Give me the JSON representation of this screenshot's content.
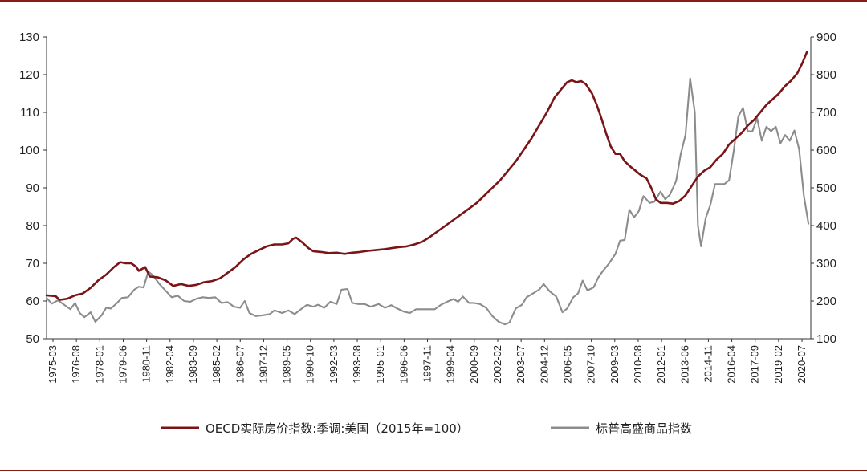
{
  "chart_data": {
    "type": "line",
    "title": "",
    "xlabel": "",
    "ylabel": "",
    "grid": false,
    "legend_position": "bottom",
    "colors": {
      "frame": "#8b1a1a",
      "axis": "#333333"
    },
    "x_tick_labels": [
      "1975-03",
      "1976-08",
      "1978-01",
      "1979-06",
      "1980-11",
      "1982-04",
      "1983-09",
      "1985-02",
      "1986-07",
      "1987-12",
      "1989-05",
      "1990-10",
      "1992-03",
      "1993-08",
      "1995-01",
      "1996-06",
      "1997-11",
      "1999-04",
      "2000-09",
      "2002-02",
      "2003-07",
      "2004-12",
      "2006-05",
      "2007-10",
      "2009-03",
      "2010-08",
      "2012-01",
      "2013-06",
      "2014-11",
      "2016-04",
      "2017-09",
      "2019-02",
      "2020-07"
    ],
    "y_left": {
      "ylim": [
        50,
        130
      ],
      "ticks": [
        50,
        60,
        70,
        80,
        90,
        100,
        110,
        120,
        130
      ]
    },
    "y_right": {
      "ylim": [
        100,
        900
      ],
      "ticks": [
        100,
        200,
        300,
        400,
        500,
        600,
        700,
        800,
        900
      ]
    },
    "series": [
      {
        "name": "OECD实际房价指数:季调:美国（2015年=100）",
        "axis": "left",
        "color": "#7b1417",
        "points": [
          [
            1975.17,
            61.5
          ],
          [
            1975.75,
            61.3
          ],
          [
            1976.0,
            60.3
          ],
          [
            1976.5,
            60.6
          ],
          [
            1977.0,
            61.5
          ],
          [
            1977.5,
            62.0
          ],
          [
            1978.0,
            63.5
          ],
          [
            1978.5,
            65.5
          ],
          [
            1979.0,
            67.0
          ],
          [
            1979.5,
            69.0
          ],
          [
            1979.9,
            70.3
          ],
          [
            1980.25,
            70.0
          ],
          [
            1980.6,
            70.0
          ],
          [
            1980.9,
            69.2
          ],
          [
            1981.1,
            68.0
          ],
          [
            1981.5,
            69.0
          ],
          [
            1981.8,
            66.5
          ],
          [
            1982.3,
            66.3
          ],
          [
            1982.8,
            65.5
          ],
          [
            1983.3,
            64.0
          ],
          [
            1983.8,
            64.5
          ],
          [
            1984.3,
            64.0
          ],
          [
            1984.8,
            64.3
          ],
          [
            1985.3,
            65.0
          ],
          [
            1985.8,
            65.3
          ],
          [
            1986.3,
            66.0
          ],
          [
            1986.8,
            67.5
          ],
          [
            1987.3,
            69.0
          ],
          [
            1987.8,
            71.0
          ],
          [
            1988.3,
            72.5
          ],
          [
            1988.8,
            73.5
          ],
          [
            1989.3,
            74.5
          ],
          [
            1989.8,
            75.0
          ],
          [
            1990.3,
            75.0
          ],
          [
            1990.7,
            75.3
          ],
          [
            1991.0,
            76.5
          ],
          [
            1991.2,
            76.8
          ],
          [
            1991.6,
            75.5
          ],
          [
            1992.0,
            74.0
          ],
          [
            1992.3,
            73.2
          ],
          [
            1992.8,
            73.0
          ],
          [
            1993.3,
            72.7
          ],
          [
            1993.8,
            72.8
          ],
          [
            1994.3,
            72.5
          ],
          [
            1994.8,
            72.8
          ],
          [
            1995.3,
            73.0
          ],
          [
            1995.8,
            73.3
          ],
          [
            1996.3,
            73.5
          ],
          [
            1996.8,
            73.7
          ],
          [
            1997.3,
            74.0
          ],
          [
            1997.8,
            74.3
          ],
          [
            1998.3,
            74.5
          ],
          [
            1998.8,
            75.0
          ],
          [
            1999.3,
            75.7
          ],
          [
            1999.8,
            77.0
          ],
          [
            2000.3,
            78.5
          ],
          [
            2000.8,
            80.0
          ],
          [
            2001.3,
            81.5
          ],
          [
            2001.8,
            83.0
          ],
          [
            2002.3,
            84.5
          ],
          [
            2002.8,
            86.0
          ],
          [
            2003.3,
            88.0
          ],
          [
            2003.8,
            90.0
          ],
          [
            2004.3,
            92.0
          ],
          [
            2004.8,
            94.5
          ],
          [
            2005.3,
            97.0
          ],
          [
            2005.8,
            100.0
          ],
          [
            2006.3,
            103.0
          ],
          [
            2006.8,
            106.5
          ],
          [
            2007.3,
            110.0
          ],
          [
            2007.8,
            114.0
          ],
          [
            2008.3,
            116.5
          ],
          [
            2008.6,
            118.0
          ],
          [
            2008.9,
            118.5
          ],
          [
            2009.2,
            118.0
          ],
          [
            2009.5,
            118.3
          ],
          [
            2009.8,
            117.5
          ],
          [
            2010.2,
            115.0
          ],
          [
            2010.5,
            112.0
          ],
          [
            2010.8,
            108.5
          ],
          [
            2011.1,
            104.5
          ],
          [
            2011.4,
            101.0
          ],
          [
            2011.7,
            99.0
          ],
          [
            2012.0,
            99.0
          ],
          [
            2012.3,
            97.0
          ],
          [
            2012.7,
            95.5
          ],
          [
            2013.0,
            94.5
          ],
          [
            2013.3,
            93.5
          ],
          [
            2013.7,
            92.5
          ],
          [
            2014.0,
            90.0
          ],
          [
            2014.3,
            87.0
          ],
          [
            2014.6,
            86.0
          ],
          [
            2015.0,
            86.0
          ],
          [
            2015.4,
            85.8
          ],
          [
            2015.8,
            86.5
          ],
          [
            2016.2,
            88.0
          ],
          [
            2016.6,
            90.5
          ],
          [
            2017.0,
            93.0
          ],
          [
            2017.4,
            94.5
          ],
          [
            2017.8,
            95.5
          ],
          [
            2018.2,
            97.5
          ],
          [
            2018.6,
            99.0
          ],
          [
            2019.0,
            101.5
          ],
          [
            2019.4,
            103.0
          ],
          [
            2019.8,
            104.5
          ],
          [
            2020.2,
            106.5
          ],
          [
            2020.6,
            108.0
          ],
          [
            2021.0,
            110.0
          ],
          [
            2021.4,
            112.0
          ],
          [
            2021.8,
            113.5
          ],
          [
            2022.2,
            115.0
          ],
          [
            2022.6,
            117.0
          ],
          [
            2023.0,
            118.5
          ],
          [
            2023.4,
            120.5
          ],
          [
            2023.7,
            123.0
          ],
          [
            2024.0,
            126.0
          ]
        ]
      },
      {
        "name": "标普高盛商品指数",
        "axis": "right",
        "color": "#8c8c8c",
        "points": [
          [
            1975.17,
            208
          ],
          [
            1975.5,
            193
          ],
          [
            1975.9,
            202
          ],
          [
            1976.3,
            190
          ],
          [
            1976.7,
            178
          ],
          [
            1977.0,
            195
          ],
          [
            1977.3,
            168
          ],
          [
            1977.6,
            157
          ],
          [
            1978.0,
            170
          ],
          [
            1978.3,
            145
          ],
          [
            1978.7,
            162
          ],
          [
            1979.0,
            182
          ],
          [
            1979.3,
            180
          ],
          [
            1979.7,
            195
          ],
          [
            1980.0,
            208
          ],
          [
            1980.4,
            210
          ],
          [
            1980.8,
            230
          ],
          [
            1981.1,
            238
          ],
          [
            1981.4,
            236
          ],
          [
            1981.7,
            278
          ],
          [
            1982.0,
            268
          ],
          [
            1982.4,
            246
          ],
          [
            1982.8,
            228
          ],
          [
            1983.2,
            210
          ],
          [
            1983.6,
            214
          ],
          [
            1984.0,
            200
          ],
          [
            1984.4,
            198
          ],
          [
            1984.8,
            206
          ],
          [
            1985.2,
            210
          ],
          [
            1985.6,
            208
          ],
          [
            1986.0,
            210
          ],
          [
            1986.4,
            195
          ],
          [
            1986.8,
            197
          ],
          [
            1987.2,
            185
          ],
          [
            1987.6,
            182
          ],
          [
            1987.9,
            200
          ],
          [
            1988.2,
            168
          ],
          [
            1988.6,
            160
          ],
          [
            1989.0,
            162
          ],
          [
            1989.5,
            165
          ],
          [
            1989.8,
            175
          ],
          [
            1990.3,
            168
          ],
          [
            1990.7,
            175
          ],
          [
            1991.1,
            165
          ],
          [
            1991.5,
            178
          ],
          [
            1991.9,
            190
          ],
          [
            1992.3,
            185
          ],
          [
            1992.6,
            190
          ],
          [
            1993.0,
            182
          ],
          [
            1993.4,
            198
          ],
          [
            1993.8,
            192
          ],
          [
            1994.1,
            230
          ],
          [
            1994.5,
            232
          ],
          [
            1994.8,
            195
          ],
          [
            1995.2,
            192
          ],
          [
            1995.6,
            192
          ],
          [
            1996.0,
            185
          ],
          [
            1996.5,
            192
          ],
          [
            1996.9,
            182
          ],
          [
            1997.3,
            189
          ],
          [
            1997.7,
            180
          ],
          [
            1998.1,
            172
          ],
          [
            1998.5,
            168
          ],
          [
            1998.9,
            178
          ],
          [
            1999.3,
            178
          ],
          [
            1999.7,
            178
          ],
          [
            2000.1,
            178
          ],
          [
            2000.5,
            190
          ],
          [
            2000.9,
            198
          ],
          [
            2001.3,
            205
          ],
          [
            2001.6,
            198
          ],
          [
            2001.9,
            212
          ],
          [
            2002.3,
            195
          ],
          [
            2002.6,
            195
          ],
          [
            2003.0,
            192
          ],
          [
            2003.4,
            182
          ],
          [
            2003.8,
            160
          ],
          [
            2004.2,
            145
          ],
          [
            2004.6,
            138
          ],
          [
            2004.9,
            143
          ],
          [
            2005.3,
            180
          ],
          [
            2005.7,
            190
          ],
          [
            2006.0,
            210
          ],
          [
            2006.4,
            220
          ],
          [
            2006.8,
            230
          ],
          [
            2007.1,
            245
          ],
          [
            2007.5,
            225
          ],
          [
            2007.9,
            212
          ],
          [
            2008.3,
            170
          ],
          [
            2008.6,
            180
          ],
          [
            2009.0,
            210
          ],
          [
            2009.3,
            220
          ],
          [
            2009.6,
            254
          ],
          [
            2009.9,
            228
          ],
          [
            2010.3,
            236
          ],
          [
            2010.6,
            262
          ],
          [
            2010.9,
            280
          ],
          [
            2011.3,
            300
          ],
          [
            2011.7,
            325
          ],
          [
            2012.0,
            360
          ],
          [
            2012.3,
            362
          ],
          [
            2012.6,
            442
          ],
          [
            2012.9,
            422
          ],
          [
            2013.2,
            438
          ],
          [
            2013.5,
            478
          ],
          [
            2013.9,
            460
          ],
          [
            2014.2,
            463
          ],
          [
            2014.6,
            490
          ],
          [
            2014.9,
            470
          ],
          [
            2015.2,
            482
          ],
          [
            2015.6,
            518
          ],
          [
            2015.9,
            590
          ],
          [
            2016.2,
            640
          ],
          [
            2016.5,
            790
          ],
          [
            2016.8,
            700
          ],
          [
            2017.0,
            400
          ],
          [
            2017.2,
            345
          ],
          [
            2017.5,
            420
          ],
          [
            2017.8,
            455
          ],
          [
            2018.1,
            510
          ],
          [
            2018.4,
            510
          ],
          [
            2018.7,
            510
          ],
          [
            2019.0,
            520
          ],
          [
            2019.3,
            598
          ],
          [
            2019.6,
            690
          ],
          [
            2019.9,
            712
          ],
          [
            2020.2,
            650
          ],
          [
            2020.5,
            650
          ],
          [
            2020.8,
            685
          ],
          [
            2021.1,
            625
          ],
          [
            2021.4,
            662
          ],
          [
            2021.7,
            650
          ],
          [
            2022.0,
            662
          ],
          [
            2022.3,
            618
          ],
          [
            2022.6,
            640
          ],
          [
            2022.9,
            625
          ],
          [
            2023.2,
            652
          ],
          [
            2023.5,
            602
          ],
          [
            2023.8,
            480
          ],
          [
            2024.1,
            405
          ]
        ]
      }
    ]
  }
}
